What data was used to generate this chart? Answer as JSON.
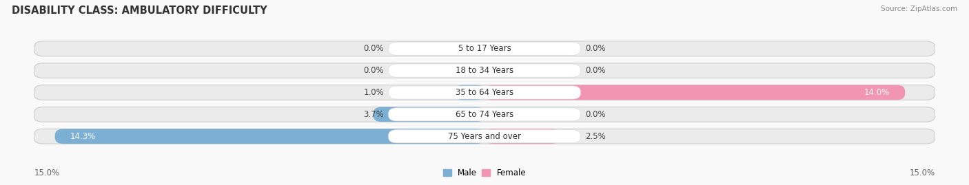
{
  "title": "DISABILITY CLASS: AMBULATORY DIFFICULTY",
  "source": "Source: ZipAtlas.com",
  "categories": [
    "5 to 17 Years",
    "18 to 34 Years",
    "35 to 64 Years",
    "65 to 74 Years",
    "75 Years and over"
  ],
  "male_values": [
    0.0,
    0.0,
    1.0,
    3.7,
    14.3
  ],
  "female_values": [
    0.0,
    0.0,
    14.0,
    0.0,
    2.5
  ],
  "male_color": "#7bafd4",
  "female_color": "#f195b2",
  "bar_bg_color": "#ebebeb",
  "bar_outline_color": "#cccccc",
  "label_bg_color": "#ffffff",
  "max_value": 15.0,
  "axis_label_left": "15.0%",
  "axis_label_right": "15.0%",
  "title_fontsize": 10.5,
  "label_fontsize": 8.5,
  "tick_fontsize": 8.5,
  "source_fontsize": 7.5,
  "background_color": "#f9f9f9",
  "row_bg_color": "#f2f2f2"
}
